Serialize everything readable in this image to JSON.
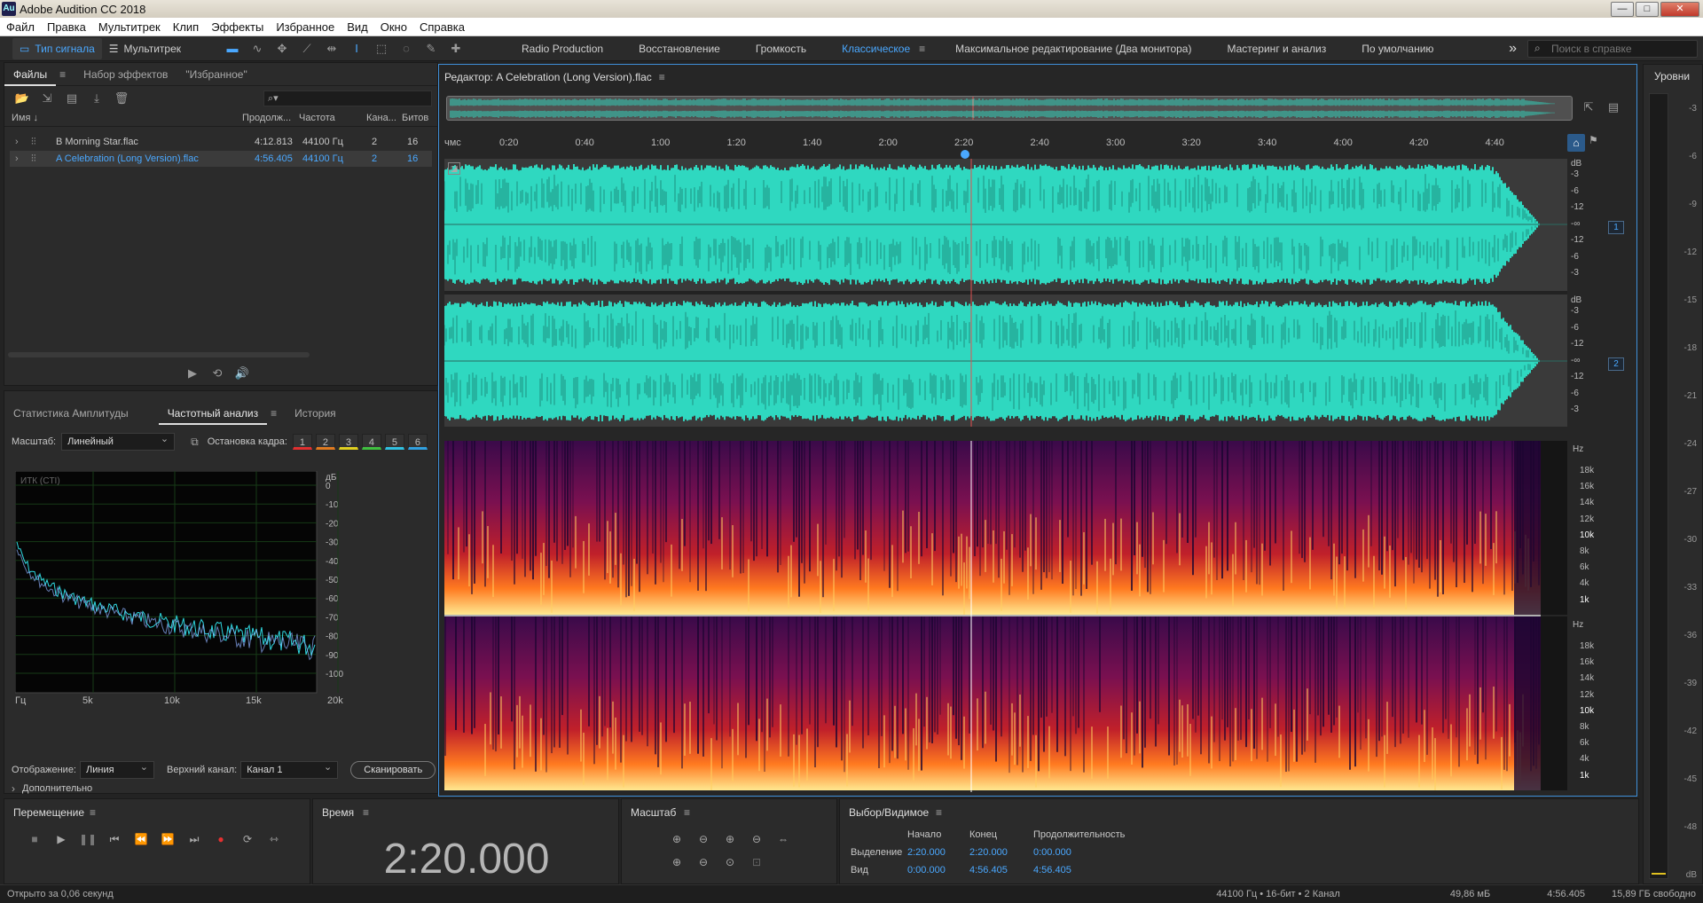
{
  "titlebar": {
    "icon": "Au",
    "title": "Adobe Audition CC 2018",
    "min": "—",
    "max": "□",
    "close": "✕"
  },
  "menu": [
    "Файл",
    "Правка",
    "Мультитрек",
    "Клип",
    "Эффекты",
    "Избранное",
    "Вид",
    "Окно",
    "Справка"
  ],
  "toolbar": {
    "mode_waveform": "Тип сигнала",
    "mode_multitrack": "Мультитрек",
    "workspaces": [
      "Radio Production",
      "Восстановление",
      "Громкость",
      "Классическое",
      "Максимальное редактирование (Два монитора)",
      "Мастеринг и анализ",
      "По умолчанию"
    ],
    "active_workspace": "Классическое",
    "overflow": "»",
    "help_placeholder": "Поиск в справке"
  },
  "files_panel": {
    "tabs": [
      "Файлы",
      "Набор эффектов",
      "\"Избранное\""
    ],
    "columns": {
      "name": "Имя ↓",
      "duration": "Продолж...",
      "rate": "Частота",
      "channels": "Кана...",
      "bits": "Битов"
    },
    "rows": [
      {
        "name": "B Morning Star.flac",
        "duration": "4:12.813",
        "rate": "44100 Гц",
        "channels": "2",
        "bits": "16",
        "selected": false
      },
      {
        "name": "A Celebration (Long Version).flac",
        "duration": "4:56.405",
        "rate": "44100 Гц",
        "channels": "2",
        "bits": "16",
        "selected": true
      }
    ]
  },
  "freq_panel": {
    "tabs": [
      "Статистика Амплитуды",
      "Частотный анализ",
      "История"
    ],
    "scale_label": "Масштаб:",
    "scale_value": "Линейный",
    "freeze_label": "Остановка кадра:",
    "freeze_buttons": [
      "1",
      "2",
      "3",
      "4",
      "5",
      "6"
    ],
    "freeze_colors": [
      "#e03030",
      "#e07a20",
      "#e0d020",
      "#40c040",
      "#30c0e0",
      "#30a0e0"
    ],
    "graph_label": "ИТК (CTI)",
    "db_unit": "дБ",
    "db_ticks": [
      "0",
      "-10",
      "-20",
      "-30",
      "-40",
      "-50",
      "-60",
      "-70",
      "-80",
      "-90",
      "-100"
    ],
    "freq_ticks": [
      "Гц",
      "5k",
      "10k",
      "15k",
      "20k"
    ],
    "display_label": "Отображение:",
    "display_value": "Линия",
    "channel_label": "Верхний канал:",
    "channel_value": "Канал 1",
    "scan_button": "Сканировать",
    "more_label": "Дополнительно"
  },
  "editor": {
    "title": "Редактор: A Celebration (Long Version).flac",
    "ruler_unit": "чмс",
    "ruler_ticks": [
      "0:20",
      "0:40",
      "1:00",
      "1:20",
      "1:40",
      "2:00",
      "2:20",
      "2:40",
      "3:00",
      "3:20",
      "3:40",
      "4:00",
      "4:20",
      "4:40"
    ],
    "db_unit": "dB",
    "db_ticks_top": [
      "-3",
      "-6",
      "-12",
      "-∞",
      "-12",
      "-6",
      "-3"
    ],
    "db_ticks_bottom": [
      "-3",
      "-6",
      "-12",
      "-∞",
      "-12",
      "-6",
      "-3"
    ],
    "channel_1": "1",
    "channel_2": "2",
    "hz_unit": "Hz",
    "hz_ticks": [
      "18k",
      "16k",
      "14k",
      "12k",
      "10k",
      "8k",
      "6k",
      "4k",
      "1k"
    ],
    "waveform_color": "#2fd8c0",
    "playhead_time": "2:20"
  },
  "levels": {
    "title": "Уровни",
    "ticks": [
      "-3",
      "-6",
      "-9",
      "-12",
      "-15",
      "-18",
      "-21",
      "-24",
      "-27",
      "-30",
      "-33",
      "-36",
      "-39",
      "-42",
      "-45",
      "-48"
    ],
    "unit": "dB"
  },
  "transport": {
    "title": "Перемещение"
  },
  "time": {
    "title": "Время",
    "value": "2:20.000"
  },
  "zoom": {
    "title": "Масштаб"
  },
  "selection": {
    "title": "Выбор/Видимое",
    "col_start": "Начало",
    "col_end": "Конец",
    "col_duration": "Продолжительность",
    "row_selection": "Выделение",
    "row_view": "Вид",
    "sel_start": "2:20.000",
    "sel_end": "2:20.000",
    "sel_duration": "0:00.000",
    "view_start": "0:00.000",
    "view_end": "4:56.405",
    "view_duration": "4:56.405"
  },
  "status": {
    "left": "Открыто за 0,06 секунд",
    "format": "44100 Гц • 16-бит • 2 Канал",
    "size": "49,86 мБ",
    "duration": "4:56.405",
    "free": "15,89 ГБ свободно"
  }
}
